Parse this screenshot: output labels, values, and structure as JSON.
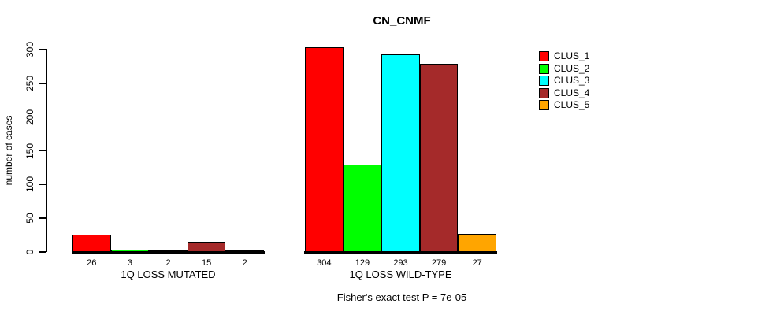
{
  "chart_data": {
    "type": "bar",
    "title": "CN_CNMF",
    "ylabel": "number of cases",
    "xlabel": "",
    "ylim": [
      0,
      300
    ],
    "yticks": [
      0,
      50,
      100,
      150,
      200,
      250,
      300
    ],
    "grid": false,
    "legend_position": "right",
    "categories": [
      "1Q LOSS MUTATED",
      "1Q LOSS WILD-TYPE"
    ],
    "series": [
      {
        "name": "CLUS_1",
        "color": "#FF0000",
        "values": [
          26,
          304
        ]
      },
      {
        "name": "CLUS_2",
        "color": "#00FF00",
        "values": [
          3,
          129
        ]
      },
      {
        "name": "CLUS_3",
        "color": "#00FFFF",
        "values": [
          2,
          293
        ]
      },
      {
        "name": "CLUS_4",
        "color": "#A52A2A",
        "values": [
          15,
          279
        ]
      },
      {
        "name": "CLUS_5",
        "color": "#FFA500",
        "values": [
          2,
          27
        ]
      }
    ],
    "bar_value_labels": true,
    "annotation": "Fisher's exact test P = 7e-05"
  },
  "colors": {
    "background": "#FFFFFF",
    "axis": "#000000",
    "text": "#000000"
  }
}
